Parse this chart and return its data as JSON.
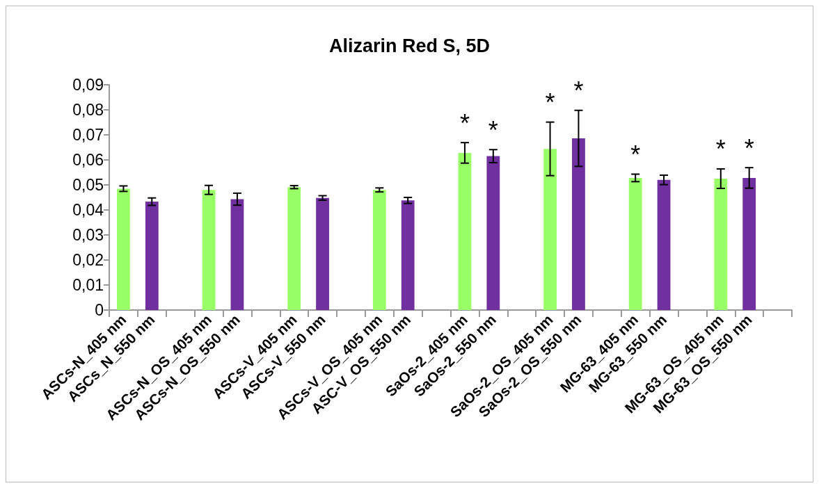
{
  "chart_data": {
    "type": "bar",
    "title": "Alizarin Red S, 5D",
    "categories": [
      "ASCs-N_405 nm",
      "ASCs_N_550 nm",
      null,
      "ASCs-N_OS_405 nm",
      "ASCs-N_OS_550 nm",
      null,
      "ASCs-V_405 nm",
      "ASCs-V_550 nm",
      null,
      "ASCs-V_OS_405 nm",
      "ASC-V_OS_550 nm",
      null,
      "SaOs-2_405 nm",
      "SaOs-2_550 nm",
      null,
      "SaOs-2_OS_405 nm",
      "SaOs-2_OS_550 nm",
      null,
      "MG-63_405 nm",
      "MG-63_550 nm",
      null,
      "MG-63_OS_405 nm",
      "MG-63_OS_550 nm",
      null
    ],
    "values": [
      0.0485,
      0.0433,
      null,
      0.048,
      0.0443,
      null,
      0.0491,
      0.0448,
      null,
      0.048,
      0.0438,
      null,
      0.0628,
      0.0615,
      null,
      0.0644,
      0.0686,
      null,
      0.0528,
      0.052,
      null,
      0.0525,
      0.0528,
      null
    ],
    "errors": [
      0.0011,
      0.0015,
      null,
      0.0018,
      0.0024,
      null,
      0.0006,
      0.0009,
      null,
      0.0008,
      0.0012,
      null,
      0.0041,
      0.0026,
      null,
      0.0107,
      0.0112,
      null,
      0.0015,
      0.0019,
      null,
      0.0039,
      0.0041,
      null
    ],
    "colors": [
      "#99ff66",
      "#7030a0",
      null,
      "#99ff66",
      "#7030a0",
      null,
      "#99ff66",
      "#7030a0",
      null,
      "#99ff66",
      "#7030a0",
      null,
      "#99ff66",
      "#7030a0",
      null,
      "#99ff66",
      "#7030a0",
      null,
      "#99ff66",
      "#7030a0",
      null,
      "#99ff66",
      "#7030a0",
      null
    ],
    "ylim": [
      0,
      0.09
    ],
    "yticks": [
      0,
      {
        "value": 0.01,
        "label": "0,01"
      },
      {
        "value": 0.02,
        "label": "0,02"
      },
      {
        "value": 0.03,
        "label": "0,03"
      },
      {
        "value": 0.04,
        "label": "0,04"
      },
      {
        "value": 0.05,
        "label": "0,05"
      },
      {
        "value": 0.06,
        "label": "0,06"
      },
      {
        "value": 0.07,
        "label": "0,07"
      },
      {
        "value": 0.08,
        "label": "0,08"
      },
      {
        "value": 0.09,
        "label": "0,09"
      }
    ],
    "grid": false,
    "annotations": [
      {
        "text": "*",
        "x": "SaOs-2_405 nm",
        "y": 0.0628
      },
      {
        "text": "*",
        "x": "SaOs-2_550 nm",
        "y": 0.0615
      },
      {
        "text": "*",
        "x": "SaOs-2_OS_405 nm",
        "y": 0.0644
      },
      {
        "text": "*",
        "x": "SaOs-2_OS_550 nm",
        "y": 0.0686
      },
      {
        "text": "*",
        "x": "MG-63_405 nm",
        "y": 0.0528
      },
      {
        "text": "*",
        "x": "MG-63_OS_405 nm",
        "y": 0.0525
      },
      {
        "text": "*",
        "x": "MG-63_OS_550 nm",
        "y": 0.0528
      }
    ]
  }
}
